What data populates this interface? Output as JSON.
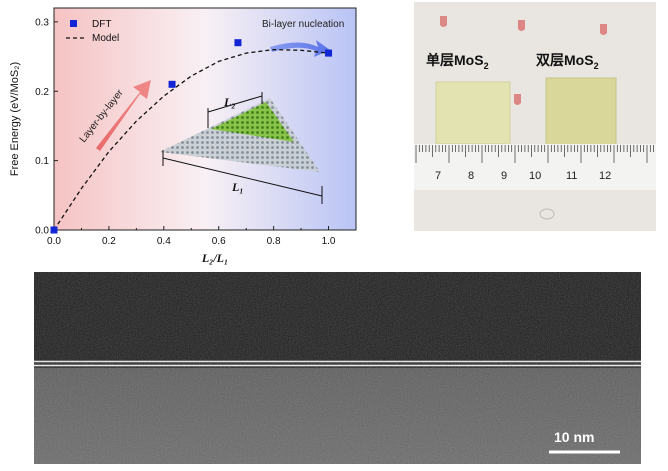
{
  "chart_data": {
    "type": "scatter",
    "ylabel": "Free Energy (eV/MoS₂)",
    "xlabel": "L₂/L₁",
    "xlim": [
      0,
      1.1
    ],
    "ylim": [
      0,
      0.32
    ],
    "xticks": [
      "0.0",
      "0.2",
      "0.4",
      "0.6",
      "0.8",
      "1.0"
    ],
    "yticks": [
      "0.0",
      "0.1",
      "0.2",
      "0.3"
    ],
    "legend": {
      "position": "top-left",
      "entries": [
        "DFT",
        "Model"
      ]
    },
    "series": [
      {
        "name": "DFT",
        "style": "square-markers",
        "color": "#1326d6",
        "x": [
          0.0,
          0.43,
          0.67,
          1.0
        ],
        "y": [
          0.0,
          0.21,
          0.27,
          0.255
        ]
      },
      {
        "name": "Model",
        "style": "dashed-line",
        "color": "#111111",
        "x": [
          0.0,
          0.1,
          0.2,
          0.3,
          0.4,
          0.5,
          0.6,
          0.7,
          0.8,
          0.9,
          1.0
        ],
        "y": [
          0.0,
          0.06,
          0.113,
          0.157,
          0.193,
          0.222,
          0.243,
          0.255,
          0.26,
          0.259,
          0.255
        ]
      }
    ],
    "annotations": [
      "Layer-by-layer",
      "Bi-layer nucleation",
      "L₂",
      "L₁"
    ],
    "background_gradient": {
      "left": "#f3b6b6",
      "right": "#b6c0f4"
    }
  },
  "photo": {
    "label_single": "单层MoS",
    "label_double": "双层MoS",
    "subscript": "2",
    "ruler_numbers": [
      "7",
      "8",
      "9",
      "10",
      "11",
      "12"
    ]
  },
  "tem": {
    "scale_label": "10 nm"
  }
}
